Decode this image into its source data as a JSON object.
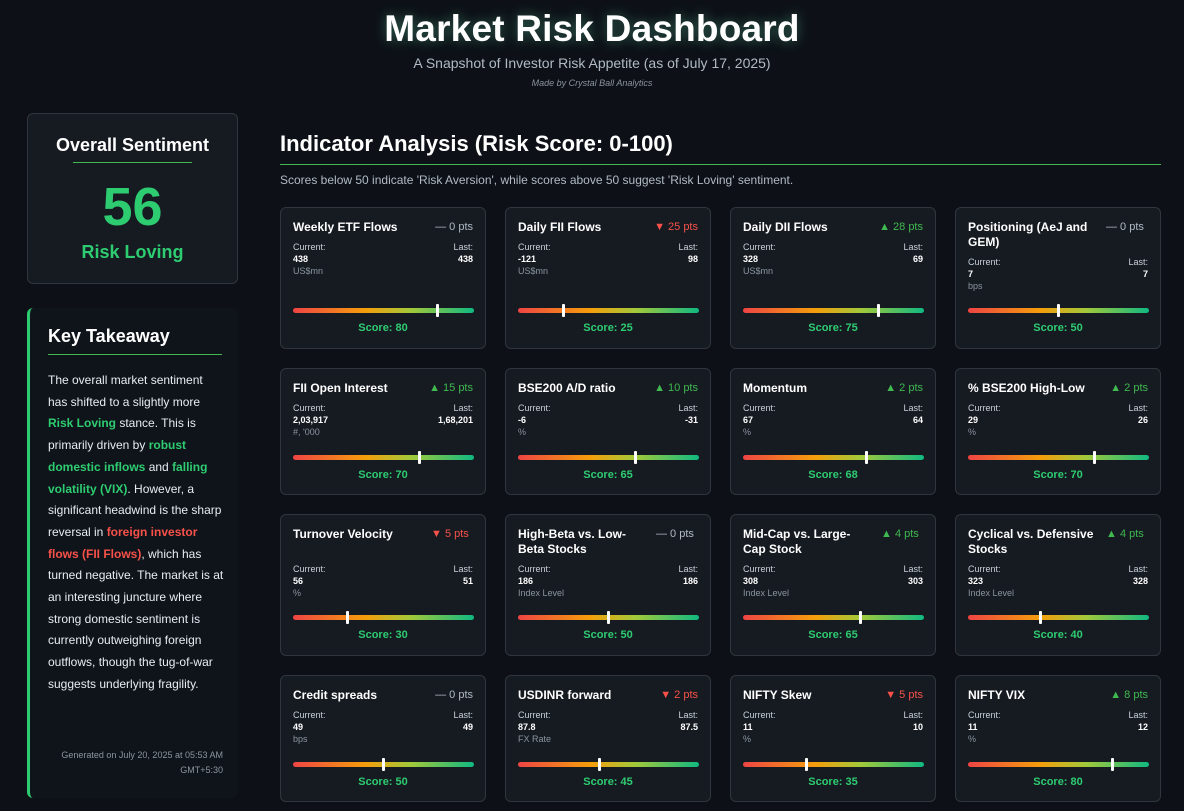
{
  "header": {
    "title": "Market Risk Dashboard",
    "subtitle": "A Snapshot of Investor Risk Appetite (as of July 17, 2025)",
    "credit": "Made by Crystal Ball Analytics"
  },
  "overall": {
    "title": "Overall Sentiment",
    "score": "56",
    "label": "Risk Loving"
  },
  "takeaway": {
    "title": "Key Takeaway",
    "p1": "The overall market sentiment has shifted to a slightly more ",
    "hl1": "Risk Loving",
    "p2": " stance. This is primarily driven by ",
    "hl2": "robust domestic inflows",
    "p3": " and ",
    "hl3": "falling volatility (VIX)",
    "p4": ". However, a significant headwind is the sharp reversal in ",
    "hl4": "foreign investor flows (FII Flows)",
    "p5": ", which has turned negative. The market is at an interesting juncture where strong domestic sentiment is currently outweighing foreign outflows, though the tug-of-war suggests underlying fragility.",
    "generated": "Generated on July 20, 2025 at 05:53 AM GMT+5:30"
  },
  "indicators": {
    "title": "Indicator Analysis (Risk Score: 0-100)",
    "note": "Scores below 50 indicate 'Risk Aversion', while scores above 50 suggest 'Risk Loving' sentiment.",
    "current_label": "Current:",
    "last_label": "Last:",
    "cards": [
      {
        "name": "Weekly ETF Flows",
        "change": "— 0 pts",
        "dir": "flat",
        "current": "438",
        "last": "438",
        "unit": "US$mn",
        "score": 80,
        "score_text": "Score: 80"
      },
      {
        "name": "Daily FII Flows",
        "change": "▼ 25 pts",
        "dir": "down",
        "current": "-121",
        "last": "98",
        "unit": "US$mn",
        "score": 25,
        "score_text": "Score: 25"
      },
      {
        "name": "Daily DII Flows",
        "change": "▲ 28 pts",
        "dir": "up",
        "current": "328",
        "last": "69",
        "unit": "US$mn",
        "score": 75,
        "score_text": "Score: 75"
      },
      {
        "name": "Positioning (AeJ and GEM)",
        "change": "— 0 pts",
        "dir": "flat",
        "current": "7",
        "last": "7",
        "unit": "bps",
        "score": 50,
        "score_text": "Score: 50"
      },
      {
        "name": "FII Open Interest",
        "change": "▲ 15 pts",
        "dir": "up",
        "current": "2,03,917",
        "last": "1,68,201",
        "unit": "#, '000",
        "score": 70,
        "score_text": "Score: 70"
      },
      {
        "name": "BSE200 A/D ratio",
        "change": "▲ 10 pts",
        "dir": "up",
        "current": "-6",
        "last": "-31",
        "unit": "%",
        "score": 65,
        "score_text": "Score: 65"
      },
      {
        "name": "Momentum",
        "change": "▲ 2 pts",
        "dir": "up",
        "current": "67",
        "last": "64",
        "unit": "%",
        "score": 68,
        "score_text": "Score: 68"
      },
      {
        "name": "% BSE200 High-Low",
        "change": "▲ 2 pts",
        "dir": "up",
        "current": "29",
        "last": "26",
        "unit": "%",
        "score": 70,
        "score_text": "Score: 70"
      },
      {
        "name": "Turnover Velocity",
        "change": "▼ 5 pts",
        "dir": "down",
        "current": "56",
        "last": "51",
        "unit": "%",
        "score": 30,
        "score_text": "Score: 30"
      },
      {
        "name": "High-Beta vs. Low-Beta Stocks",
        "change": "— 0 pts",
        "dir": "flat",
        "current": "186",
        "last": "186",
        "unit": "Index Level",
        "score": 50,
        "score_text": "Score: 50"
      },
      {
        "name": "Mid-Cap vs. Large-Cap Stock",
        "change": "▲ 4 pts",
        "dir": "up",
        "current": "308",
        "last": "303",
        "unit": "Index Level",
        "score": 65,
        "score_text": "Score: 65"
      },
      {
        "name": "Cyclical vs. Defensive Stocks",
        "change": "▲ 4 pts",
        "dir": "up",
        "current": "323",
        "last": "328",
        "unit": "Index Level",
        "score": 40,
        "score_text": "Score: 40"
      },
      {
        "name": "Credit spreads",
        "change": "— 0 pts",
        "dir": "flat",
        "current": "49",
        "last": "49",
        "unit": "bps",
        "score": 50,
        "score_text": "Score: 50"
      },
      {
        "name": "USDINR forward",
        "change": "▼ 2 pts",
        "dir": "down",
        "current": "87.8",
        "last": "87.5",
        "unit": "FX Rate",
        "score": 45,
        "score_text": "Score: 45"
      },
      {
        "name": "NIFTY Skew",
        "change": "▼ 5 pts",
        "dir": "down",
        "current": "11",
        "last": "10",
        "unit": "%",
        "score": 35,
        "score_text": "Score: 35"
      },
      {
        "name": "NIFTY VIX",
        "change": "▲ 8 pts",
        "dir": "up",
        "current": "11",
        "last": "12",
        "unit": "%",
        "score": 80,
        "score_text": "Score: 80"
      }
    ]
  }
}
